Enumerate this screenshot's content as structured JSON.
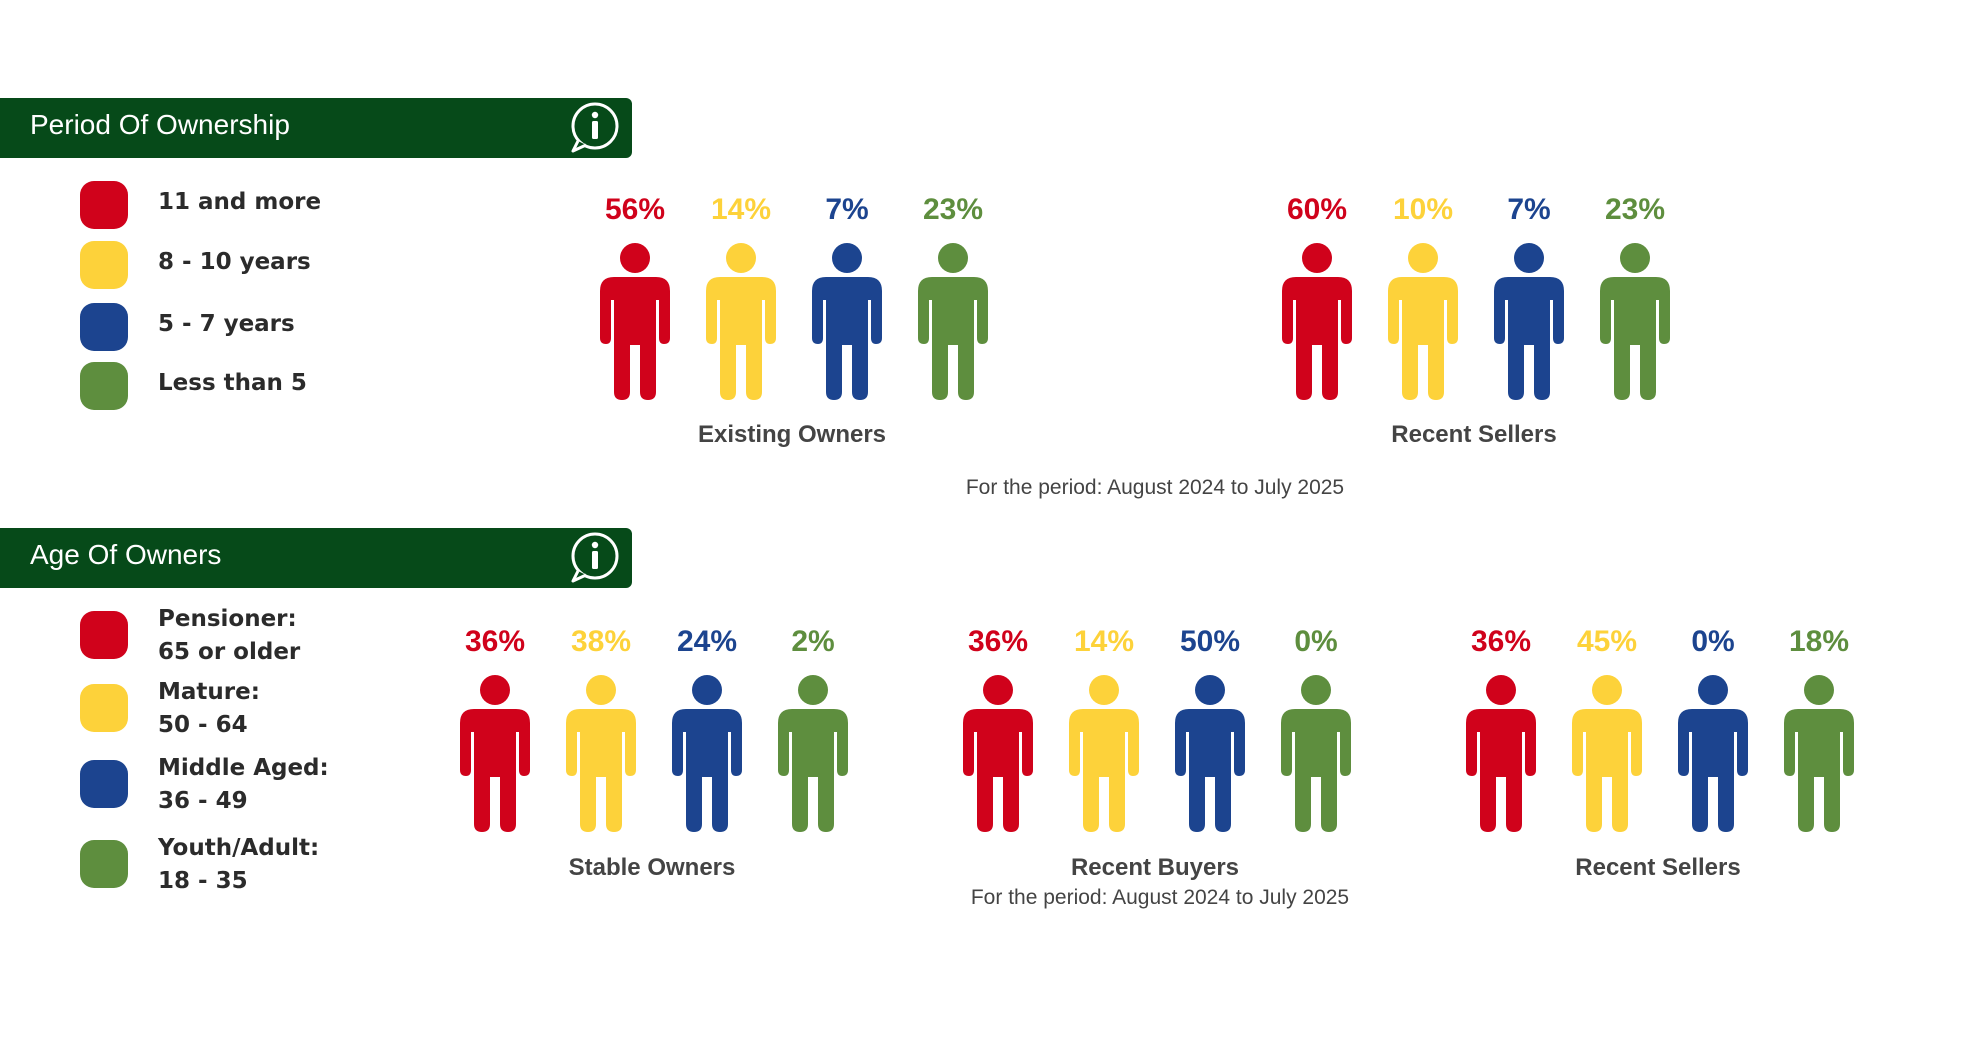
{
  "colors": {
    "red": "#d0021b",
    "yellow": "#fdd23a",
    "blue": "#1c448f",
    "green": "#5e8e3e",
    "banner": "#064a19"
  },
  "sections": {
    "ownership": {
      "title": "Period Of Ownership",
      "info_icon": "info-icon",
      "legend": [
        {
          "line1": "11 and more",
          "line2": ""
        },
        {
          "line1": "8 - 10 years",
          "line2": ""
        },
        {
          "line1": "5 - 7 years",
          "line2": ""
        },
        {
          "line1": "Less than 5",
          "line2": ""
        }
      ],
      "period_note": "For the period: August 2024 to July 2025"
    },
    "age": {
      "title": "Age Of Owners",
      "info_icon": "info-icon",
      "legend": [
        {
          "line1": "Pensioner:",
          "line2": "65 or older"
        },
        {
          "line1": "Mature:",
          "line2": "50 - 64"
        },
        {
          "line1": "Middle Aged:",
          "line2": "36 - 49"
        },
        {
          "line1": "Youth/Adult:",
          "line2": "18 - 35"
        }
      ],
      "period_note": "For the period: August 2024 to July 2025"
    }
  },
  "chart_data": [
    {
      "type": "bar",
      "title": "Period Of Ownership",
      "categories": [
        "11 and more",
        "8 - 10 years",
        "5 - 7 years",
        "Less than 5"
      ],
      "series": [
        {
          "name": "Existing Owners",
          "labels": [
            "56%",
            "14%",
            "7%",
            "23%"
          ],
          "values": [
            56,
            14,
            7,
            23
          ]
        },
        {
          "name": "Recent Sellers",
          "labels": [
            "60%",
            "10%",
            "7%",
            "23%"
          ],
          "values": [
            60,
            10,
            7,
            23
          ]
        }
      ]
    },
    {
      "type": "bar",
      "title": "Age Of Owners",
      "categories": [
        "Pensioner: 65 or older",
        "Mature: 50 - 64",
        "Middle Aged: 36 - 49",
        "Youth/Adult: 18 - 35"
      ],
      "series": [
        {
          "name": "Stable Owners",
          "labels": [
            "36%",
            "38%",
            "24%",
            "2%"
          ],
          "values": [
            36,
            38,
            24,
            2
          ]
        },
        {
          "name": "Recent Buyers",
          "labels": [
            "36%",
            "14%",
            "50%",
            "0%"
          ],
          "values": [
            36,
            14,
            50,
            0
          ]
        },
        {
          "name": "Recent Sellers",
          "labels": [
            "36%",
            "45%",
            "0%",
            "18%"
          ],
          "values": [
            36,
            45,
            0,
            18
          ]
        }
      ]
    }
  ]
}
